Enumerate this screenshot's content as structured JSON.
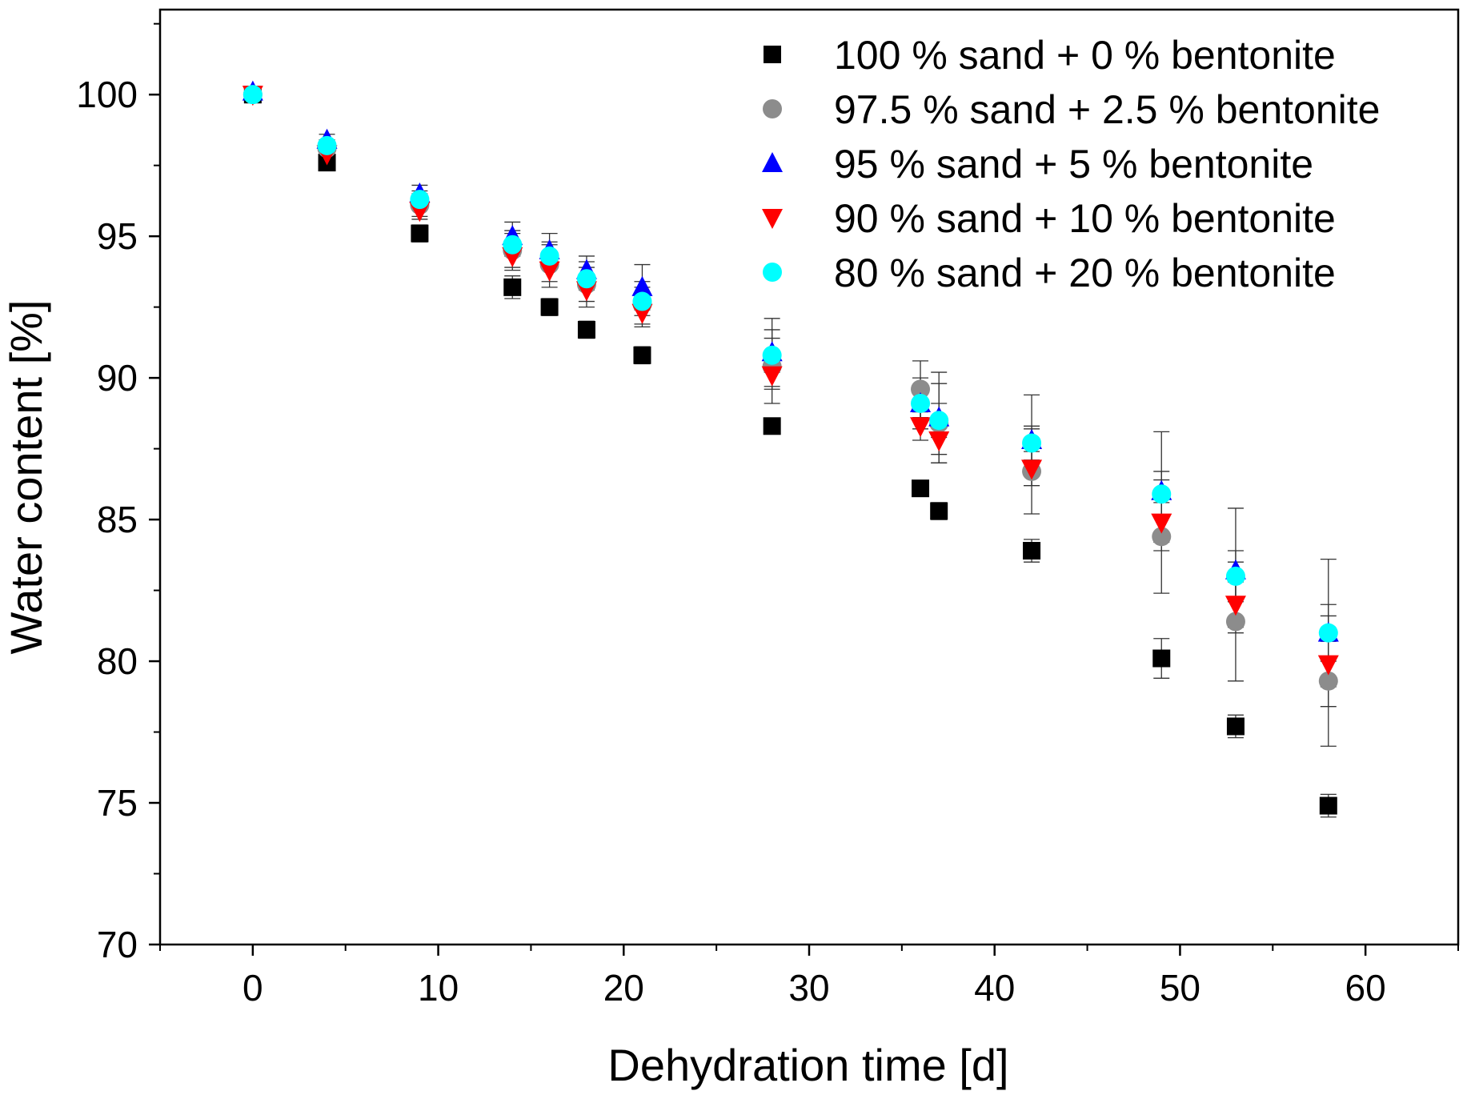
{
  "chart_data": {
    "type": "scatter",
    "title": "",
    "xlabel": "Dehydration time [d]",
    "ylabel": "Water content [%]",
    "xlim": [
      -5,
      65
    ],
    "ylim": [
      70,
      103
    ],
    "xticks": [
      0,
      10,
      20,
      30,
      40,
      50,
      60
    ],
    "yticks": [
      70,
      75,
      80,
      85,
      90,
      95,
      100
    ],
    "grid": false,
    "legend_position": "top-right",
    "x": [
      0,
      4,
      9,
      14,
      16,
      18,
      21,
      28,
      36,
      37,
      42,
      49,
      53,
      58
    ],
    "series": [
      {
        "name": "100 % sand + 0 % bentonite",
        "marker": "square",
        "color": "#000000",
        "y": [
          100,
          97.6,
          95.1,
          93.2,
          92.5,
          91.7,
          90.8,
          88.3,
          86.1,
          85.3,
          83.9,
          80.1,
          77.7,
          74.9
        ],
        "error": [
          0.1,
          0.2,
          0.3,
          0.4,
          0.3,
          0.3,
          0.3,
          0.2,
          0.2,
          0.3,
          0.4,
          0.7,
          0.4,
          0.4
        ]
      },
      {
        "name": "97.5 % sand + 2.5 % bentonite",
        "marker": "circle",
        "color": "#8c8c8c",
        "y": [
          100,
          98.1,
          96.1,
          94.5,
          94.0,
          93.3,
          92.6,
          90.4,
          89.6,
          88.4,
          86.7,
          84.4,
          81.4,
          79.3
        ],
        "error": [
          0.1,
          0.3,
          0.4,
          0.7,
          0.8,
          0.8,
          0.8,
          1.3,
          1.0,
          1.4,
          1.5,
          2.0,
          2.1,
          2.3
        ]
      },
      {
        "name": "95 % sand + 5 % bentonite",
        "marker": "triangle-up",
        "color": "#0000ff",
        "y": [
          100.1,
          98.4,
          96.5,
          95.0,
          94.5,
          93.8,
          93.2,
          90.9,
          89.1,
          88.6,
          87.8,
          86.0,
          83.2,
          81.0
        ],
        "error": [
          0.1,
          0.2,
          0.3,
          0.5,
          0.6,
          0.5,
          0.8,
          1.2,
          0.9,
          1.6,
          1.6,
          2.1,
          2.2,
          2.6
        ]
      },
      {
        "name": "90 % sand + 10 % bentonite",
        "marker": "triangle-down",
        "color": "#ff0000",
        "y": [
          100,
          97.9,
          95.9,
          94.3,
          93.8,
          93.1,
          92.3,
          90.1,
          88.3,
          87.8,
          86.8,
          84.9,
          82.0,
          79.9
        ],
        "error": [
          0.1,
          0.2,
          0.3,
          0.4,
          0.4,
          0.4,
          0.4,
          0.5,
          0.5,
          0.5,
          0.6,
          0.7,
          0.8,
          0.8
        ]
      },
      {
        "name": "80 % sand + 20 % bentonite",
        "marker": "circle",
        "color": "#00ffff",
        "y": [
          100,
          98.2,
          96.3,
          94.7,
          94.3,
          93.5,
          92.7,
          90.8,
          89.1,
          88.5,
          87.7,
          85.9,
          83.0,
          81.0
        ],
        "error": [
          0.1,
          0.2,
          0.3,
          0.4,
          0.4,
          0.4,
          0.5,
          0.6,
          0.6,
          0.6,
          0.6,
          0.8,
          0.9,
          1.0
        ]
      }
    ]
  }
}
